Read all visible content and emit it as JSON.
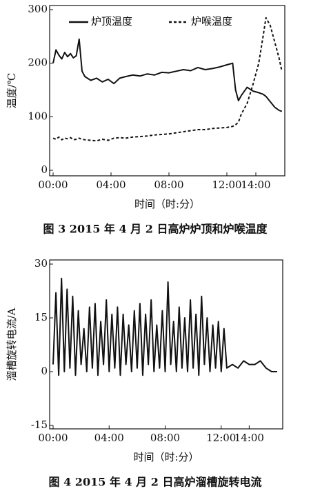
{
  "chart_data": [
    {
      "type": "line",
      "caption": "图 3  2015 年 4 月 2 日高炉炉顶和炉喉温度",
      "xlabel": "时间（时:分）",
      "ylabel": "温度/℃",
      "x": [
        0,
        0.2,
        0.4,
        0.6,
        0.8,
        1.0,
        1.2,
        1.4,
        1.6,
        1.8,
        2.0,
        2.2,
        2.6,
        3.0,
        3.4,
        3.8,
        4.2,
        4.6,
        5.0,
        5.5,
        6.0,
        6.5,
        7.0,
        7.5,
        8.0,
        8.5,
        9.0,
        9.5,
        10.0,
        10.5,
        11.0,
        11.5,
        12.0,
        12.4,
        12.6,
        12.8,
        13.0,
        13.4,
        13.8,
        14.2,
        14.5,
        14.7,
        15.0,
        15.3,
        15.6,
        15.8
      ],
      "series": [
        {
          "name": "炉顶温度",
          "color": "#111111",
          "linestyle": "solid",
          "values": [
            200,
            225,
            215,
            208,
            220,
            212,
            218,
            210,
            214,
            245,
            185,
            175,
            168,
            172,
            165,
            170,
            162,
            172,
            175,
            178,
            176,
            180,
            178,
            183,
            182,
            185,
            188,
            186,
            192,
            188,
            190,
            193,
            197,
            200,
            150,
            130,
            140,
            155,
            148,
            145,
            142,
            138,
            128,
            118,
            112,
            110
          ]
        },
        {
          "name": "炉喉温度",
          "color": "#111111",
          "linestyle": "dashed",
          "values": [
            60,
            58,
            62,
            57,
            60,
            59,
            61,
            57,
            58,
            60,
            58,
            57,
            56,
            55,
            58,
            56,
            60,
            61,
            60,
            62,
            63,
            64,
            66,
            67,
            68,
            70,
            72,
            74,
            76,
            76,
            78,
            79,
            80,
            82,
            85,
            90,
            105,
            125,
            160,
            200,
            250,
            285,
            270,
            240,
            210,
            185
          ]
        }
      ],
      "xlim": [
        0,
        16
      ],
      "ylim": [
        0,
        300
      ],
      "xticks": [
        {
          "value": 0,
          "label": "00:00"
        },
        {
          "value": 4,
          "label": "04:00"
        },
        {
          "value": 8,
          "label": "08:00"
        },
        {
          "value": 12,
          "label": "12:00"
        },
        {
          "value": 14,
          "label": "14:00"
        }
      ],
      "yticks": [
        0,
        100,
        200,
        300
      ],
      "legend": "top"
    },
    {
      "type": "line",
      "caption": "图 4  2015 年 4 月 2 日高炉溜槽旋转电流",
      "xlabel": "时间（时:分）",
      "ylabel": "溜槽旋转电流/A",
      "x": [
        0,
        0.2,
        0.4,
        0.6,
        0.8,
        1.0,
        1.2,
        1.4,
        1.6,
        1.8,
        2.0,
        2.2,
        2.4,
        2.6,
        2.8,
        3.0,
        3.2,
        3.4,
        3.6,
        3.8,
        4.0,
        4.2,
        4.4,
        4.6,
        4.8,
        5.0,
        5.2,
        5.4,
        5.6,
        5.8,
        6.0,
        6.2,
        6.4,
        6.6,
        6.8,
        7.0,
        7.2,
        7.4,
        7.6,
        7.8,
        8.0,
        8.2,
        8.4,
        8.6,
        8.8,
        9.0,
        9.2,
        9.4,
        9.6,
        9.8,
        10.0,
        10.2,
        10.4,
        10.6,
        10.8,
        11.0,
        11.2,
        11.4,
        11.6,
        11.8,
        12.0,
        12.2,
        12.4,
        12.8,
        13.2,
        13.6,
        14.0,
        14.4,
        14.8,
        15.2,
        15.6,
        16.0
      ],
      "series": [
        {
          "name": "溜槽旋转电流",
          "color": "#111111",
          "linestyle": "solid",
          "values": [
            2,
            22,
            -1,
            26,
            0,
            23,
            1,
            21,
            -1,
            17,
            2,
            12,
            0,
            18,
            1,
            19,
            -1,
            14,
            2,
            20,
            0,
            16,
            1,
            18,
            -1,
            16,
            2,
            13,
            0,
            17,
            1,
            19,
            -1,
            16,
            2,
            20,
            0,
            13,
            1,
            17,
            0,
            25,
            2,
            14,
            0,
            18,
            1,
            15,
            0,
            20,
            1,
            16,
            -1,
            21,
            2,
            15,
            0,
            13,
            1,
            14,
            0,
            12,
            1,
            2,
            1,
            3,
            2,
            2,
            3,
            1,
            0,
            0
          ]
        }
      ],
      "xlim": [
        0,
        16
      ],
      "ylim": [
        -15,
        30
      ],
      "xticks": [
        {
          "value": 0,
          "label": "00:00"
        },
        {
          "value": 4,
          "label": "04:00"
        },
        {
          "value": 8,
          "label": "08:00"
        },
        {
          "value": 12,
          "label": "12:00"
        },
        {
          "value": 14,
          "label": "14:00"
        }
      ],
      "yticks": [
        -15,
        0,
        15,
        30
      ]
    }
  ]
}
